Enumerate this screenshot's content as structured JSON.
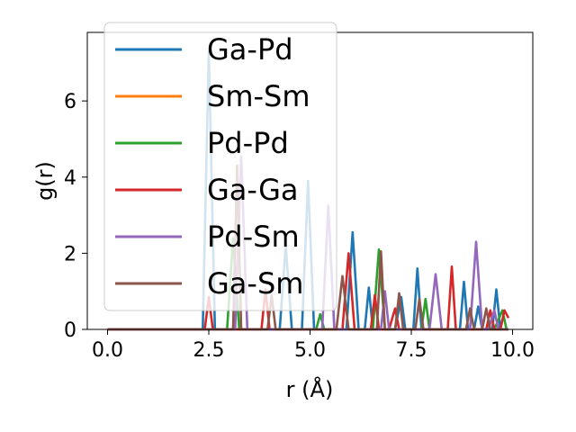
{
  "chart_data": {
    "type": "line",
    "xlabel": "r (Å)",
    "ylabel": "g(r)",
    "xlim": [
      -0.5,
      10.5
    ],
    "ylim": [
      0,
      7.8
    ],
    "xticks": [
      "0.0",
      "2.5",
      "5.0",
      "7.5",
      "10.0"
    ],
    "xtick_values": [
      0,
      2.5,
      5,
      7.5,
      10
    ],
    "yticks": [
      "0",
      "2",
      "4",
      "6"
    ],
    "ytick_values": [
      0,
      2,
      4,
      6
    ],
    "legend_position": "top-left",
    "series": [
      {
        "name": "Ga-Pd",
        "color": "#1f77b4",
        "points": [
          [
            0,
            0
          ],
          [
            2.35,
            0
          ],
          [
            2.5,
            7.3
          ],
          [
            2.65,
            0
          ],
          [
            4.25,
            0
          ],
          [
            4.4,
            2.2
          ],
          [
            4.55,
            0
          ],
          [
            4.8,
            0
          ],
          [
            4.95,
            3.9
          ],
          [
            5.1,
            0
          ],
          [
            5.9,
            0
          ],
          [
            6.05,
            2.55
          ],
          [
            6.2,
            0
          ],
          [
            6.35,
            0
          ],
          [
            6.45,
            1.1
          ],
          [
            6.55,
            0
          ],
          [
            7.1,
            0
          ],
          [
            7.25,
            0.85
          ],
          [
            7.35,
            0
          ],
          [
            7.55,
            0
          ],
          [
            7.65,
            1.6
          ],
          [
            7.75,
            0
          ],
          [
            8.7,
            0
          ],
          [
            8.8,
            1.25
          ],
          [
            8.9,
            0
          ],
          [
            9.05,
            0
          ],
          [
            9.15,
            0.6
          ],
          [
            9.25,
            0
          ],
          [
            9.5,
            0
          ],
          [
            9.6,
            1.05
          ],
          [
            9.7,
            0
          ],
          [
            9.9,
            0
          ]
        ]
      },
      {
        "name": "Sm-Sm",
        "color": "#ff7f0e",
        "points": [
          [
            0,
            0
          ],
          [
            9.9,
            0
          ]
        ]
      },
      {
        "name": "Pd-Pd",
        "color": "#2ca02c",
        "points": [
          [
            0,
            0
          ],
          [
            2.95,
            0
          ],
          [
            3.1,
            2.4
          ],
          [
            3.25,
            0
          ],
          [
            5.15,
            0
          ],
          [
            5.25,
            0.4
          ],
          [
            5.35,
            0
          ],
          [
            6.55,
            0
          ],
          [
            6.7,
            2.1
          ],
          [
            6.85,
            0
          ],
          [
            7.75,
            0
          ],
          [
            7.85,
            0.8
          ],
          [
            7.95,
            0
          ],
          [
            9.55,
            0
          ],
          [
            9.75,
            0.5
          ],
          [
            9.85,
            0
          ]
        ]
      },
      {
        "name": "Ga-Ga",
        "color": "#d62728",
        "points": [
          [
            0,
            0
          ],
          [
            2.4,
            0
          ],
          [
            2.5,
            0.85
          ],
          [
            2.6,
            0
          ],
          [
            3.8,
            0
          ],
          [
            3.9,
            1.05
          ],
          [
            4.0,
            0
          ],
          [
            5.8,
            0
          ],
          [
            5.95,
            2.0
          ],
          [
            6.1,
            0
          ],
          [
            6.5,
            0
          ],
          [
            6.6,
            0.9
          ],
          [
            6.7,
            0
          ],
          [
            6.95,
            0
          ],
          [
            7.1,
            0.55
          ],
          [
            7.2,
            0
          ],
          [
            8.4,
            0
          ],
          [
            8.5,
            1.65
          ],
          [
            8.6,
            0
          ],
          [
            9.35,
            0
          ],
          [
            9.45,
            0.5
          ],
          [
            9.55,
            0
          ],
          [
            9.7,
            0
          ],
          [
            9.8,
            0.5
          ],
          [
            9.9,
            0.3
          ]
        ]
      },
      {
        "name": "Pd-Sm",
        "color": "#9467bd",
        "points": [
          [
            0,
            0
          ],
          [
            3.15,
            0
          ],
          [
            3.3,
            4.55
          ],
          [
            3.45,
            0
          ],
          [
            5.3,
            0
          ],
          [
            5.45,
            3.25
          ],
          [
            5.6,
            0
          ],
          [
            6.75,
            0
          ],
          [
            6.85,
            1.0
          ],
          [
            6.95,
            0
          ],
          [
            7.95,
            0
          ],
          [
            8.1,
            1.45
          ],
          [
            8.25,
            0
          ],
          [
            8.95,
            0
          ],
          [
            9.1,
            2.3
          ],
          [
            9.25,
            0
          ],
          [
            9.4,
            0
          ],
          [
            9.55,
            0.5
          ],
          [
            9.65,
            0
          ],
          [
            9.9,
            0
          ]
        ]
      },
      {
        "name": "Ga-Sm",
        "color": "#8c564b",
        "points": [
          [
            0,
            0
          ],
          [
            3.1,
            0
          ],
          [
            3.2,
            4.3
          ],
          [
            3.3,
            0
          ],
          [
            3.95,
            0
          ],
          [
            4.05,
            0.9
          ],
          [
            4.15,
            0
          ],
          [
            5.65,
            0
          ],
          [
            5.8,
            1.4
          ],
          [
            5.95,
            0
          ],
          [
            6.65,
            0
          ],
          [
            6.75,
            2.05
          ],
          [
            6.85,
            0
          ],
          [
            7.1,
            0
          ],
          [
            7.2,
            0.95
          ],
          [
            7.3,
            0
          ],
          [
            7.6,
            0
          ],
          [
            7.7,
            0.8
          ],
          [
            7.8,
            0
          ],
          [
            8.85,
            0
          ],
          [
            8.95,
            0.55
          ],
          [
            9.05,
            0
          ],
          [
            9.25,
            0
          ],
          [
            9.35,
            0.55
          ],
          [
            9.45,
            0
          ],
          [
            9.9,
            0
          ]
        ]
      }
    ]
  }
}
